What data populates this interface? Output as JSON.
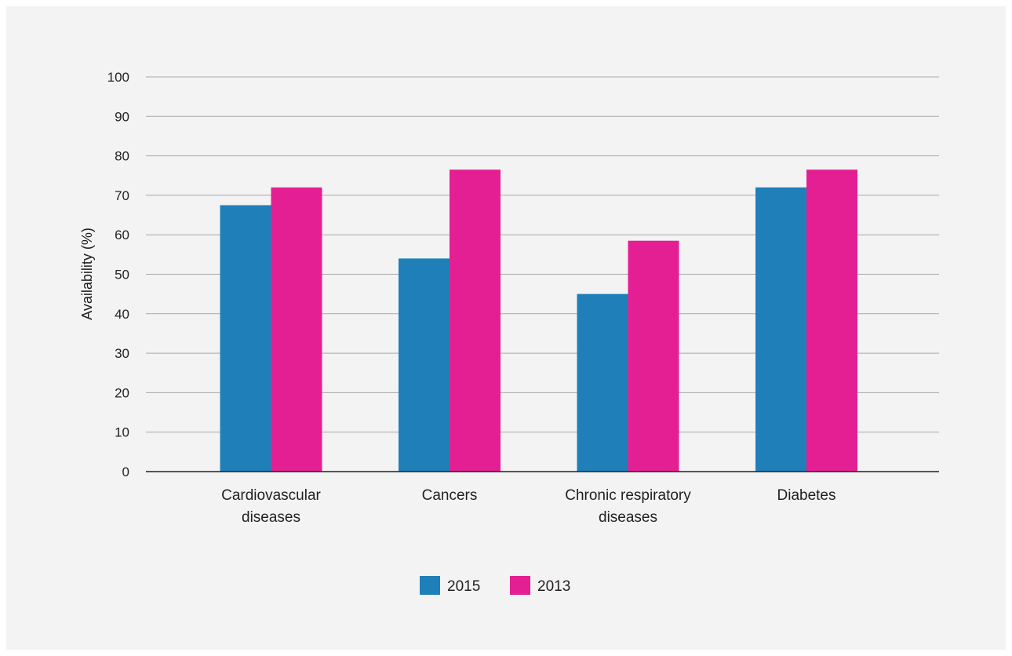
{
  "chart_data": {
    "type": "bar",
    "title": "",
    "xlabel": "",
    "ylabel": "Availability (%)",
    "ylim": [
      0,
      100
    ],
    "yticks": [
      0,
      10,
      20,
      30,
      40,
      50,
      60,
      70,
      80,
      90,
      100
    ],
    "grid": true,
    "legend_position": "bottom",
    "categories": [
      [
        "Cardiovascular",
        "diseases"
      ],
      [
        "Cancers"
      ],
      [
        "Chronic respiratory",
        "diseases"
      ],
      [
        "Diabetes"
      ]
    ],
    "series": [
      {
        "name": "2015",
        "color": "#1f80b9",
        "values": [
          67.5,
          54,
          45,
          72
        ]
      },
      {
        "name": "2013",
        "color": "#e41f93",
        "values": [
          72,
          76.5,
          58.5,
          76.5
        ]
      }
    ]
  }
}
